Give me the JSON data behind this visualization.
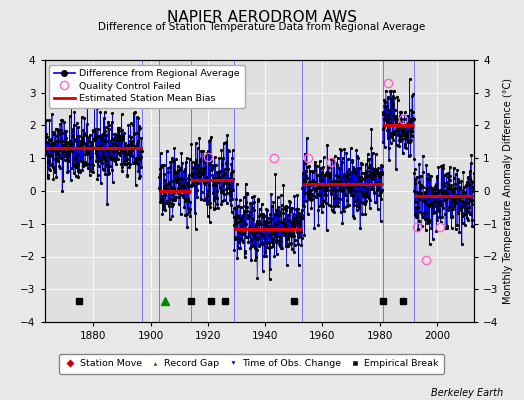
{
  "title": "NAPIER AERODROM AWS",
  "subtitle": "Difference of Station Temperature Data from Regional Average",
  "ylabel": "Monthly Temperature Anomaly Difference (°C)",
  "xlabel_credit": "Berkeley Earth",
  "ylim": [
    -4,
    4
  ],
  "xlim": [
    1863,
    2013
  ],
  "yticks": [
    -4,
    -3,
    -2,
    -1,
    0,
    1,
    2,
    3,
    4
  ],
  "xticks": [
    1880,
    1900,
    1920,
    1940,
    1960,
    1980,
    2000
  ],
  "fig_bg_color": "#e8e8e8",
  "plot_bg_color": "#e0e0e0",
  "line_color": "#0000dd",
  "dot_color": "#000000",
  "bias_color": "#dd0000",
  "qc_color": "#ff66cc",
  "vline_color": "#6666ff",
  "segments": [
    {
      "x_start": 1863,
      "x_end": 1897,
      "bias": 1.3
    },
    {
      "x_start": 1903,
      "x_end": 1914,
      "bias": 0.0
    },
    {
      "x_start": 1914,
      "x_end": 1929,
      "bias": 0.35
    },
    {
      "x_start": 1929,
      "x_end": 1953,
      "bias": -1.15
    },
    {
      "x_start": 1953,
      "x_end": 1981,
      "bias": 0.2
    },
    {
      "x_start": 1981,
      "x_end": 1992,
      "bias": 2.0
    },
    {
      "x_start": 1992,
      "x_end": 2013,
      "bias": -0.15
    }
  ],
  "gap_periods": [
    [
      1897,
      1903
    ]
  ],
  "vertical_lines": [
    1897,
    1903,
    1914,
    1929,
    1953,
    1981,
    1992
  ],
  "empirical_breaks_x": [
    1875,
    1914,
    1921,
    1926,
    1950,
    1981,
    1988
  ],
  "record_gaps_x": [
    1905
  ],
  "station_moves_x": [],
  "obs_changes_x": [],
  "qc_failed": [
    [
      1920,
      1.05
    ],
    [
      1943,
      1.0
    ],
    [
      1955,
      1.0
    ],
    [
      1963,
      0.9
    ],
    [
      1983,
      3.3
    ],
    [
      1988,
      2.2
    ],
    [
      1993,
      -1.1
    ],
    [
      1996,
      -2.1
    ],
    [
      2001,
      -1.1
    ]
  ],
  "noise_std": 0.52,
  "seed": 42
}
